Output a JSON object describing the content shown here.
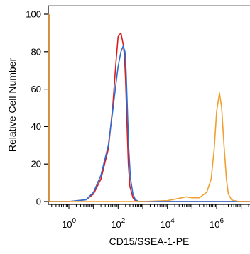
{
  "chart_data": {
    "type": "line",
    "title": "",
    "xlabel": "CD15/SSEA-1-PE",
    "ylabel": "Relative Cell Number",
    "x_scale": "log",
    "xlim": [
      0.02,
      100000000
    ],
    "ylim": [
      0,
      100
    ],
    "y_ticks": [
      0,
      20,
      40,
      60,
      80,
      100
    ],
    "x_ticks": [
      {
        "base": "10",
        "exp": "0",
        "value": 1
      },
      {
        "base": "10",
        "exp": "2",
        "value": 100
      },
      {
        "base": "10",
        "exp": "4",
        "value": 10000
      },
      {
        "base": "10",
        "exp": "6",
        "value": 1000000
      }
    ],
    "grid": false,
    "legend": "none",
    "series": [
      {
        "color": "#e01b1b",
        "x": [
          0.02,
          0.025,
          0.03,
          0.04,
          0.05,
          1,
          5,
          10,
          20,
          40,
          60,
          80,
          100,
          130,
          160,
          180,
          200,
          230,
          260,
          300,
          400,
          500,
          600,
          800,
          1000,
          5000,
          100000,
          1000000,
          100000000
        ],
        "y": [
          100,
          30,
          6,
          0.5,
          0,
          0,
          1,
          4,
          12,
          28,
          50,
          73,
          88,
          90,
          84,
          78,
          65,
          40,
          20,
          8,
          2,
          0.5,
          0,
          0,
          0,
          0,
          0,
          0,
          0
        ]
      },
      {
        "color": "#2b6fd6",
        "x": [
          0.02,
          0.025,
          0.03,
          0.04,
          0.05,
          1,
          5,
          10,
          20,
          40,
          60,
          80,
          100,
          130,
          160,
          190,
          210,
          240,
          270,
          320,
          400,
          500,
          700,
          1000,
          100000,
          1000000,
          100000000
        ],
        "y": [
          100,
          25,
          5,
          0.5,
          0,
          0,
          1,
          5,
          14,
          30,
          48,
          62,
          72,
          80,
          83,
          80,
          70,
          48,
          28,
          12,
          4,
          1,
          0,
          0,
          0,
          0,
          0
        ]
      },
      {
        "color": "#f0a030",
        "x": [
          0.02,
          0.025,
          0.03,
          0.04,
          0.05,
          1,
          1000,
          10000,
          60000,
          100000,
          200000,
          400000,
          600000,
          800000,
          1000000,
          1300000,
          1600000,
          2000000,
          2500000,
          3000000,
          4000000,
          5000000,
          8000000,
          100000000
        ],
        "y": [
          100,
          25,
          5,
          0.5,
          0,
          0,
          0,
          0.5,
          2.5,
          2,
          2,
          5,
          12,
          28,
          48,
          58,
          50,
          30,
          12,
          4,
          1,
          0.5,
          0,
          0
        ]
      }
    ]
  }
}
